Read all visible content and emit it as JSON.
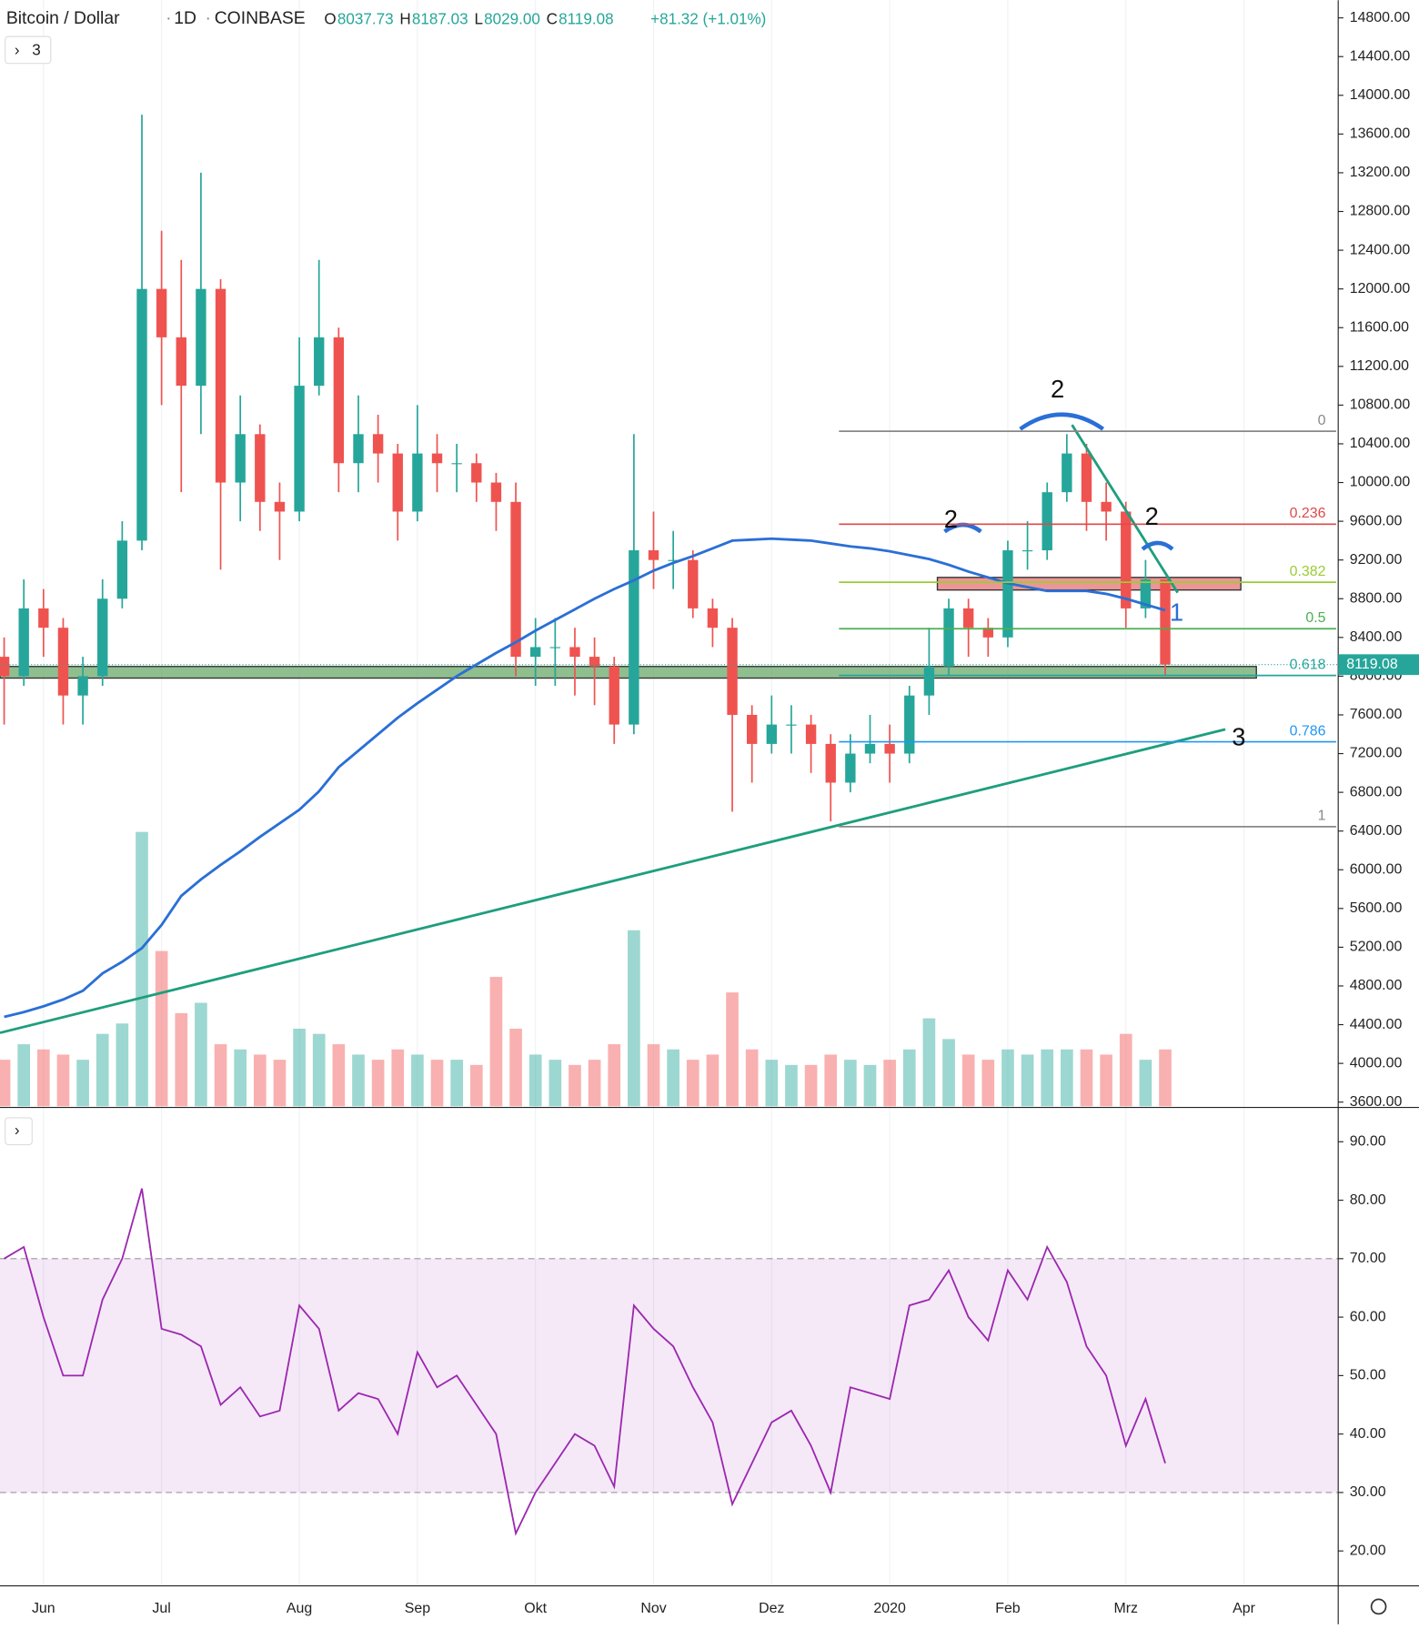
{
  "header": {
    "symbol": "Bitcoin / Dollar",
    "interval": "1D",
    "exchange": "COINBASE",
    "ohlc": [
      {
        "label": "O",
        "value": "8037.73"
      },
      {
        "label": "H",
        "value": "8187.03"
      },
      {
        "label": "L",
        "value": "8029.00"
      },
      {
        "label": "C",
        "value": "8119.08"
      }
    ],
    "change": "+81.32 (+1.01%)",
    "indicators_count": "3"
  },
  "chart_data": {
    "type": "candlestick",
    "categories": [
      null,
      null,
      "Jun",
      null,
      null,
      null,
      null,
      null,
      "Jul",
      null,
      null,
      null,
      null,
      null,
      null,
      "Aug",
      null,
      null,
      null,
      null,
      null,
      "Sep",
      null,
      null,
      null,
      null,
      null,
      "Okt",
      null,
      null,
      null,
      null,
      null,
      "Nov",
      null,
      null,
      null,
      null,
      null,
      "Dez",
      null,
      null,
      null,
      null,
      null,
      "2020",
      null,
      null,
      null,
      null,
      null,
      "Feb",
      null,
      null,
      null,
      null,
      null,
      "Mrz",
      null,
      null,
      null,
      null,
      null,
      "Apr"
    ],
    "open": [
      8200,
      8000,
      8700,
      8500,
      7800,
      8000,
      8800,
      9400,
      12000,
      11500,
      11000,
      12000,
      10000,
      10500,
      9800,
      9700,
      11000,
      11500,
      10200,
      10500,
      10300,
      9700,
      10300,
      10200,
      10200,
      10000,
      9800,
      8200,
      8300,
      8300,
      8200,
      8100,
      7500,
      9300,
      9200,
      9200,
      8700,
      8500,
      7600,
      7300,
      7500,
      7500,
      7300,
      6900,
      7200,
      7300,
      7200,
      7800,
      8100,
      8700,
      8500,
      8400,
      9300,
      9300,
      9900,
      10300,
      9800,
      9700,
      8700,
      9000,
      null,
      null,
      null,
      null
    ],
    "high": [
      8400,
      9000,
      8900,
      8600,
      8200,
      9000,
      9600,
      13800,
      12600,
      12300,
      13200,
      12100,
      10900,
      10600,
      10000,
      11500,
      12300,
      11600,
      10900,
      10700,
      10400,
      10800,
      10500,
      10400,
      10300,
      10100,
      10000,
      8600,
      8600,
      8500,
      8400,
      8200,
      10500,
      9700,
      9500,
      9300,
      8800,
      8600,
      7700,
      7800,
      7700,
      7600,
      7400,
      7400,
      7600,
      7500,
      7900,
      8500,
      8800,
      8800,
      8600,
      9400,
      9600,
      10000,
      10500,
      10400,
      10000,
      9800,
      9200,
      9000,
      null,
      null,
      null,
      null
    ],
    "low": [
      7500,
      7900,
      8200,
      7500,
      7500,
      7900,
      8700,
      9300,
      10800,
      9900,
      10500,
      9100,
      9600,
      9500,
      9200,
      9600,
      10900,
      9900,
      9900,
      10000,
      9400,
      9600,
      9900,
      9900,
      9800,
      9500,
      8000,
      7900,
      7900,
      7800,
      7700,
      7300,
      7400,
      8900,
      8900,
      8600,
      8300,
      6600,
      6900,
      7200,
      7200,
      7000,
      6500,
      6800,
      7100,
      6900,
      7100,
      7600,
      8000,
      8200,
      8200,
      8300,
      9100,
      9200,
      9800,
      9500,
      9400,
      8500,
      8600,
      8000,
      null,
      null,
      null,
      null
    ],
    "close": [
      8000,
      8700,
      8500,
      7800,
      8000,
      8800,
      9400,
      12000,
      11500,
      11000,
      12000,
      10000,
      10500,
      9800,
      9700,
      11000,
      11500,
      10200,
      10500,
      10300,
      9700,
      10300,
      10200,
      10200,
      10000,
      9800,
      8200,
      8300,
      8300,
      8200,
      8100,
      7500,
      9300,
      9200,
      9200,
      8700,
      8500,
      7600,
      7300,
      7500,
      7500,
      7300,
      6900,
      7200,
      7300,
      7200,
      7800,
      8100,
      8700,
      8500,
      8400,
      9300,
      9300,
      9900,
      10300,
      9800,
      9700,
      8700,
      9000,
      8119.08,
      null,
      null,
      null,
      null
    ],
    "up_color": "#26a69a",
    "down_color": "#ef5350",
    "volume": [
      45,
      60,
      55,
      50,
      45,
      70,
      80,
      265,
      150,
      90,
      100,
      60,
      55,
      50,
      45,
      75,
      70,
      60,
      50,
      45,
      55,
      50,
      45,
      45,
      40,
      125,
      75,
      50,
      45,
      40,
      45,
      60,
      170,
      60,
      55,
      45,
      50,
      110,
      55,
      45,
      40,
      40,
      50,
      45,
      40,
      45,
      55,
      85,
      65,
      50,
      45,
      55,
      50,
      55,
      55,
      55,
      50,
      70,
      45,
      55,
      null,
      null,
      null,
      null
    ],
    "moving_average": {
      "color": "#2a6fd6",
      "values": [
        4480,
        4530,
        4590,
        4660,
        4750,
        4930,
        5050,
        5190,
        5430,
        5730,
        5900,
        6050,
        6190,
        6340,
        6480,
        6620,
        6810,
        7060,
        7230,
        7400,
        7570,
        7720,
        7860,
        8000,
        8120,
        8240,
        8350,
        8470,
        8580,
        8690,
        8800,
        8900,
        8990,
        9090,
        9170,
        9240,
        9320,
        9400,
        9410,
        9420,
        9410,
        9400,
        9370,
        9340,
        9320,
        9290,
        9250,
        9210,
        9150,
        9080,
        9020,
        8960,
        8920,
        8880,
        8880,
        8880,
        8850,
        8800,
        8740,
        8680,
        null,
        null,
        null,
        null
      ]
    },
    "ylim": [
      3556,
      14982
    ],
    "yticks": [
      {
        "value": 3600,
        "label": "3600.00"
      },
      {
        "value": 4000,
        "label": "4000.00"
      },
      {
        "value": 4400,
        "label": "4400.00"
      },
      {
        "value": 4800,
        "label": "4800.00"
      },
      {
        "value": 5200,
        "label": "5200.00"
      },
      {
        "value": 5600,
        "label": "5600.00"
      },
      {
        "value": 6000,
        "label": "6000.00"
      },
      {
        "value": 6400,
        "label": "6400.00"
      },
      {
        "value": 6800,
        "label": "6800.00"
      },
      {
        "value": 7200,
        "label": "7200.00"
      },
      {
        "value": 7600,
        "label": "7600.00"
      },
      {
        "value": 8000,
        "label": "8000.00"
      },
      {
        "value": 8400,
        "label": "8400.00"
      },
      {
        "value": 8800,
        "label": "8800.00"
      },
      {
        "value": 9200,
        "label": "9200.00"
      },
      {
        "value": 9600,
        "label": "9600.00"
      },
      {
        "value": 10000,
        "label": "10000.00"
      },
      {
        "value": 10400,
        "label": "10400.00"
      },
      {
        "value": 10800,
        "label": "10800.00"
      },
      {
        "value": 11200,
        "label": "11200.00"
      },
      {
        "value": 11600,
        "label": "11600.00"
      },
      {
        "value": 12000,
        "label": "12000.00"
      },
      {
        "value": 12400,
        "label": "12400.00"
      },
      {
        "value": 12800,
        "label": "12800.00"
      },
      {
        "value": 13200,
        "label": "13200.00"
      },
      {
        "value": 13600,
        "label": "13600.00"
      },
      {
        "value": 14000,
        "label": "14000.00"
      },
      {
        "value": 14400,
        "label": "14400.00"
      },
      {
        "value": 14800,
        "label": "14800.00"
      }
    ],
    "grid": true,
    "last_price": {
      "value": 8119.08,
      "label": "8119.08",
      "color": "#26a69a"
    },
    "fib": [
      {
        "ratio": 0,
        "price": 10530,
        "color": "#888888"
      },
      {
        "ratio": 0.236,
        "price": 9570,
        "color": "#e04848"
      },
      {
        "ratio": 0.382,
        "price": 8970,
        "color": "#9acd32"
      },
      {
        "ratio": 0.5,
        "price": 8490,
        "color": "#4caf50"
      },
      {
        "ratio": 0.618,
        "price": 8007,
        "color": "#26a69a"
      },
      {
        "ratio": 0.786,
        "price": 7322,
        "color": "#2196f3"
      },
      {
        "ratio": 1,
        "price": 6445,
        "color": "#888888"
      }
    ],
    "zones": [
      {
        "from": 8890,
        "to": 9020,
        "color": "#e57373"
      },
      {
        "from": 7980,
        "to": 8100,
        "color": "#6aa86a"
      }
    ],
    "wave_labels": [
      2,
      2,
      2,
      1,
      3
    ],
    "rsi": {
      "type": "line",
      "color": "#9c27b0",
      "values": [
        70,
        72,
        60,
        50,
        50,
        63,
        70,
        82,
        58,
        57,
        55,
        45,
        48,
        43,
        44,
        62,
        58,
        44,
        47,
        46,
        40,
        54,
        48,
        50,
        45,
        40,
        23,
        30,
        35,
        40,
        38,
        31,
        62,
        58,
        55,
        48,
        42,
        28,
        35,
        42,
        44,
        38,
        30,
        48,
        47,
        46,
        62,
        63,
        68,
        60,
        56,
        68,
        63,
        72,
        66,
        55,
        50,
        38,
        46,
        35,
        null,
        null,
        null,
        null
      ],
      "ylim": [
        14.2,
        95.7
      ],
      "band": [
        30,
        70
      ],
      "yticks": [
        {
          "value": 20,
          "label": "20.00"
        },
        {
          "value": 30,
          "label": "30.00"
        },
        {
          "value": 40,
          "label": "40.00"
        },
        {
          "value": 50,
          "label": "50.00"
        },
        {
          "value": 60,
          "label": "60.00"
        },
        {
          "value": 70,
          "label": "70.00"
        },
        {
          "value": 80,
          "label": "80.00"
        },
        {
          "value": 90,
          "label": "90.00"
        }
      ]
    }
  }
}
